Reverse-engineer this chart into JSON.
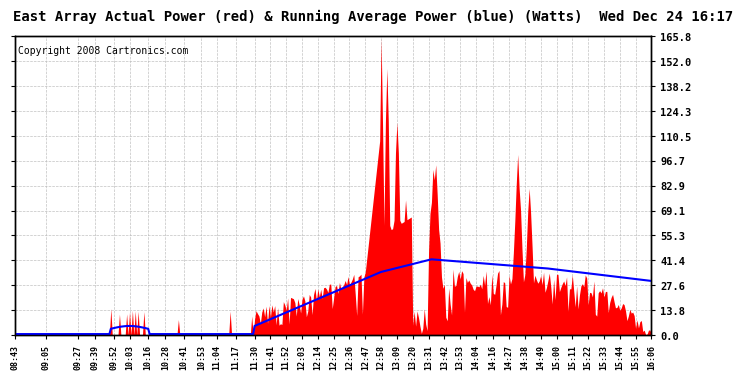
{
  "title": "East Array Actual Power (red) & Running Average Power (blue) (Watts)  Wed Dec 24 16:17",
  "copyright": "Copyright 2008 Cartronics.com",
  "ylabel_right": [
    "0.0",
    "13.8",
    "27.6",
    "41.4",
    "55.3",
    "69.1",
    "82.9",
    "96.7",
    "110.5",
    "124.3",
    "138.2",
    "152.0",
    "165.8"
  ],
  "ymax": 165.8,
  "ymin": 0.0,
  "ytick_vals": [
    0.0,
    13.8,
    27.6,
    41.4,
    55.3,
    69.1,
    82.9,
    96.7,
    110.5,
    124.3,
    138.2,
    152.0,
    165.8
  ],
  "bg_color": "#ffffff",
  "grid_color": "#bbbbbb",
  "actual_color": "red",
  "avg_color": "blue",
  "title_fontsize": 10,
  "copyright_fontsize": 7,
  "x_labels": [
    "08:43",
    "09:05",
    "09:27",
    "09:39",
    "09:52",
    "10:03",
    "10:16",
    "10:28",
    "10:41",
    "10:53",
    "11:04",
    "11:17",
    "11:30",
    "11:41",
    "11:52",
    "12:03",
    "12:14",
    "12:25",
    "12:36",
    "12:47",
    "12:58",
    "13:09",
    "13:20",
    "13:31",
    "13:42",
    "13:53",
    "14:04",
    "14:16",
    "14:27",
    "14:38",
    "14:49",
    "15:00",
    "15:11",
    "15:22",
    "15:33",
    "15:44",
    "15:55",
    "16:06"
  ]
}
